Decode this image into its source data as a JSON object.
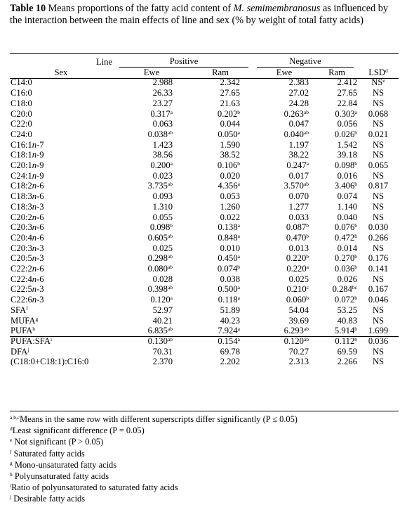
{
  "caption": {
    "label": "Table 10",
    "pre": " Means proportions of the fatty acid content of ",
    "species": "M. semimembranosus",
    "post": " as influenced by the interaction between the main effects of line and sex (% by weight of total fatty acids)"
  },
  "header": {
    "line_label": "Line",
    "sex_label": "Sex",
    "positive": "Positive",
    "negative": "Negative",
    "ewe": "Ewe",
    "ram": "Ram",
    "lsd": "LSD",
    "lsd_sup": "d"
  },
  "rows": [
    {
      "pre": "C14:0",
      "it": "",
      "post": "",
      "sup": "",
      "v": [
        [
          "2.988",
          ""
        ],
        [
          "2.342",
          ""
        ],
        [
          "2.383",
          ""
        ],
        [
          "2.412",
          ""
        ]
      ],
      "lsd": "NS",
      "lsd_sup": "e"
    },
    {
      "pre": "C16:0",
      "it": "",
      "post": "",
      "sup": "",
      "v": [
        [
          "26.33",
          ""
        ],
        [
          "27.65",
          ""
        ],
        [
          "27.02",
          ""
        ],
        [
          "27.65",
          ""
        ]
      ],
      "lsd": "NS",
      "lsd_sup": ""
    },
    {
      "pre": "C18:0",
      "it": "",
      "post": "",
      "sup": "",
      "v": [
        [
          "23.27",
          ""
        ],
        [
          "21.63",
          ""
        ],
        [
          "24.28",
          ""
        ],
        [
          "22.84",
          ""
        ]
      ],
      "lsd": "NS",
      "lsd_sup": ""
    },
    {
      "pre": "C20:0",
      "it": "",
      "post": "",
      "sup": "",
      "v": [
        [
          "0.317",
          "a"
        ],
        [
          "0.202",
          "b"
        ],
        [
          "0.263",
          "ab"
        ],
        [
          "0.303",
          "a"
        ]
      ],
      "lsd": "0.068",
      "lsd_sup": ""
    },
    {
      "pre": "C22:0",
      "it": "",
      "post": "",
      "sup": "",
      "v": [
        [
          "0.063",
          ""
        ],
        [
          "0.044",
          ""
        ],
        [
          "0.047",
          ""
        ],
        [
          "0.056",
          ""
        ]
      ],
      "lsd": "NS",
      "lsd_sup": ""
    },
    {
      "pre": "C24:0",
      "it": "",
      "post": "",
      "sup": "",
      "v": [
        [
          "0.038",
          "ab"
        ],
        [
          "0.050",
          "a"
        ],
        [
          "0.040",
          "ab"
        ],
        [
          "0.026",
          "b"
        ]
      ],
      "lsd": "0.021",
      "lsd_sup": ""
    },
    {
      "pre": "C16:1",
      "it": "n",
      "post": "-7",
      "sup": "",
      "v": [
        [
          "1.423",
          ""
        ],
        [
          "1.590",
          ""
        ],
        [
          "1.197",
          ""
        ],
        [
          "1.542",
          ""
        ]
      ],
      "lsd": "NS",
      "lsd_sup": ""
    },
    {
      "pre": "C18:1",
      "it": "n",
      "post": "-9",
      "sup": "",
      "v": [
        [
          "38.56",
          ""
        ],
        [
          "38.52",
          ""
        ],
        [
          "38.22",
          ""
        ],
        [
          "39.18",
          ""
        ]
      ],
      "lsd": "NS",
      "lsd_sup": ""
    },
    {
      "pre": "C20:1",
      "it": "n",
      "post": "-9",
      "sup": "",
      "v": [
        [
          "0.200",
          "a"
        ],
        [
          "0.106",
          "b"
        ],
        [
          "0.247",
          "a"
        ],
        [
          "0.098",
          "b"
        ]
      ],
      "lsd": "0.065",
      "lsd_sup": ""
    },
    {
      "pre": "C24:1",
      "it": "n",
      "post": "-9",
      "sup": "",
      "v": [
        [
          "0.023",
          ""
        ],
        [
          "0.020",
          ""
        ],
        [
          "0.017",
          ""
        ],
        [
          "0.016",
          ""
        ]
      ],
      "lsd": "NS",
      "lsd_sup": ""
    },
    {
      "pre": "C18:2",
      "it": "n",
      "post": "-6",
      "sup": "",
      "v": [
        [
          "3.735",
          "ab"
        ],
        [
          "4.356",
          "a"
        ],
        [
          "3.570",
          "ab"
        ],
        [
          "3.406",
          "b"
        ]
      ],
      "lsd": "0.817",
      "lsd_sup": ""
    },
    {
      "pre": "C18:3",
      "it": "n",
      "post": "-6",
      "sup": "",
      "v": [
        [
          "0.093",
          ""
        ],
        [
          "0.053",
          ""
        ],
        [
          "0.070",
          ""
        ],
        [
          "0.074",
          ""
        ]
      ],
      "lsd": "NS",
      "lsd_sup": ""
    },
    {
      "pre": "C18:3",
      "it": "n",
      "post": "-3",
      "sup": "",
      "v": [
        [
          "1.310",
          ""
        ],
        [
          "1.260",
          ""
        ],
        [
          "1.277",
          ""
        ],
        [
          "1.140",
          ""
        ]
      ],
      "lsd": "NS",
      "lsd_sup": ""
    },
    {
      "pre": "C20:2",
      "it": "n",
      "post": "-6",
      "sup": "",
      "v": [
        [
          "0.055",
          ""
        ],
        [
          "0.022",
          ""
        ],
        [
          "0.033",
          ""
        ],
        [
          "0.040",
          ""
        ]
      ],
      "lsd": "NS",
      "lsd_sup": ""
    },
    {
      "pre": "C20:3",
      "it": "n",
      "post": "-6",
      "sup": "",
      "v": [
        [
          "0.098",
          "b"
        ],
        [
          "0.138",
          "a"
        ],
        [
          "0.087",
          "b"
        ],
        [
          "0.076",
          "b"
        ]
      ],
      "lsd": "0.030",
      "lsd_sup": ""
    },
    {
      "pre": "C20:4",
      "it": "n",
      "post": "-6",
      "sup": "",
      "v": [
        [
          "0.605",
          "ab"
        ],
        [
          "0.848",
          "a"
        ],
        [
          "0.470",
          "b"
        ],
        [
          "0.472",
          "b"
        ]
      ],
      "lsd": "0.266",
      "lsd_sup": ""
    },
    {
      "pre": "C20:3",
      "it": "n",
      "post": "-3",
      "sup": "",
      "v": [
        [
          "0.025",
          ""
        ],
        [
          "0.010",
          ""
        ],
        [
          "0.013",
          ""
        ],
        [
          "0.014",
          ""
        ]
      ],
      "lsd": "NS",
      "lsd_sup": ""
    },
    {
      "pre": "C20:5",
      "it": "n",
      "post": "-3",
      "sup": "",
      "v": [
        [
          "0.298",
          "ab"
        ],
        [
          "0.450",
          "a"
        ],
        [
          "0.220",
          "b"
        ],
        [
          "0.270",
          "b"
        ]
      ],
      "lsd": "0.176",
      "lsd_sup": ""
    },
    {
      "pre": "C22:2",
      "it": "n",
      "post": "-6",
      "sup": "",
      "v": [
        [
          "0.080",
          "ab"
        ],
        [
          "0.074",
          "b"
        ],
        [
          "0.220",
          "a"
        ],
        [
          "0.036",
          "b"
        ]
      ],
      "lsd": "0.141",
      "lsd_sup": ""
    },
    {
      "pre": "C22:4",
      "it": "n",
      "post": "-6",
      "sup": "",
      "v": [
        [
          "0.028",
          ""
        ],
        [
          "0.038",
          ""
        ],
        [
          "0.025",
          ""
        ],
        [
          "0.026",
          ""
        ]
      ],
      "lsd": "NS",
      "lsd_sup": ""
    },
    {
      "pre": "C22:5",
      "it": "n",
      "post": "-3",
      "sup": "",
      "v": [
        [
          "0.398",
          "ab"
        ],
        [
          "0.500",
          "a"
        ],
        [
          "0.210",
          "c"
        ],
        [
          "0.284",
          "bc"
        ]
      ],
      "lsd": "0.167",
      "lsd_sup": ""
    },
    {
      "pre": "C22:6",
      "it": "n",
      "post": "-3",
      "sup": "",
      "v": [
        [
          "0.120",
          "a"
        ],
        [
          "0.118",
          "a"
        ],
        [
          "0.060",
          "b"
        ],
        [
          "0.072",
          "b"
        ]
      ],
      "lsd": "0.046",
      "lsd_sup": ""
    }
  ],
  "summary": [
    {
      "pre": "SFA",
      "it": "",
      "post": "",
      "sup": "f",
      "v": [
        [
          "52.97",
          ""
        ],
        [
          "51.89",
          ""
        ],
        [
          "54.04",
          ""
        ],
        [
          "53.25",
          ""
        ]
      ],
      "lsd": "NS",
      "lsd_sup": ""
    },
    {
      "pre": "MUFA",
      "it": "",
      "post": "",
      "sup": "g",
      "v": [
        [
          "40.21",
          ""
        ],
        [
          "40.23",
          ""
        ],
        [
          "39.69",
          ""
        ],
        [
          "40.83",
          ""
        ]
      ],
      "lsd": "NS",
      "lsd_sup": ""
    },
    {
      "pre": "PUFA",
      "it": "",
      "post": "",
      "sup": "h",
      "v": [
        [
          "6.835",
          "ab"
        ],
        [
          "7.924",
          "a"
        ],
        [
          "6.293",
          "ab"
        ],
        [
          "5.914",
          "b"
        ]
      ],
      "lsd": "1.699",
      "lsd_sup": ""
    },
    {
      "pre": "PUFA:SFA",
      "it": "",
      "post": "",
      "sup": "i",
      "v": [
        [
          "0.130",
          "ab"
        ],
        [
          "0.154",
          "a"
        ],
        [
          "0.120",
          "ab"
        ],
        [
          "0.112",
          "b"
        ]
      ],
      "lsd": "0.036",
      "lsd_sup": ""
    },
    {
      "pre": "DFA",
      "it": "",
      "post": "",
      "sup": "j",
      "v": [
        [
          "70.31",
          ""
        ],
        [
          "69.78",
          ""
        ],
        [
          "70.27",
          ""
        ],
        [
          "69.59",
          ""
        ]
      ],
      "lsd": "NS",
      "lsd_sup": ""
    },
    {
      "pre": "(C18:0+C18:1):C16:0",
      "it": "",
      "post": "",
      "sup": "",
      "v": [
        [
          "2.370",
          ""
        ],
        [
          "2.202",
          ""
        ],
        [
          "2.313",
          ""
        ],
        [
          "2.266",
          ""
        ]
      ],
      "lsd": "NS",
      "lsd_sup": ""
    }
  ],
  "footnotes": [
    {
      "sup": "a,b,c",
      "text": "Means in the same row with different superscripts differ significantly (P ≤ 0.05)"
    },
    {
      "sup": "d",
      "text": "Least significant difference (P = 0.05)"
    },
    {
      "sup": "e",
      "text": " Not significant (P > 0.05)"
    },
    {
      "sup": "f",
      "text": " Saturated fatty acids"
    },
    {
      "sup": "g",
      "text": " Mono-unsaturated fatty acids"
    },
    {
      "sup": "h",
      "text": " Polyunsaturated fatty acids"
    },
    {
      "sup": "i",
      "text": "Ratio of polyunsaturated to saturated fatty acids"
    },
    {
      "sup": "j",
      "text": " Desirable fatty acids"
    }
  ]
}
